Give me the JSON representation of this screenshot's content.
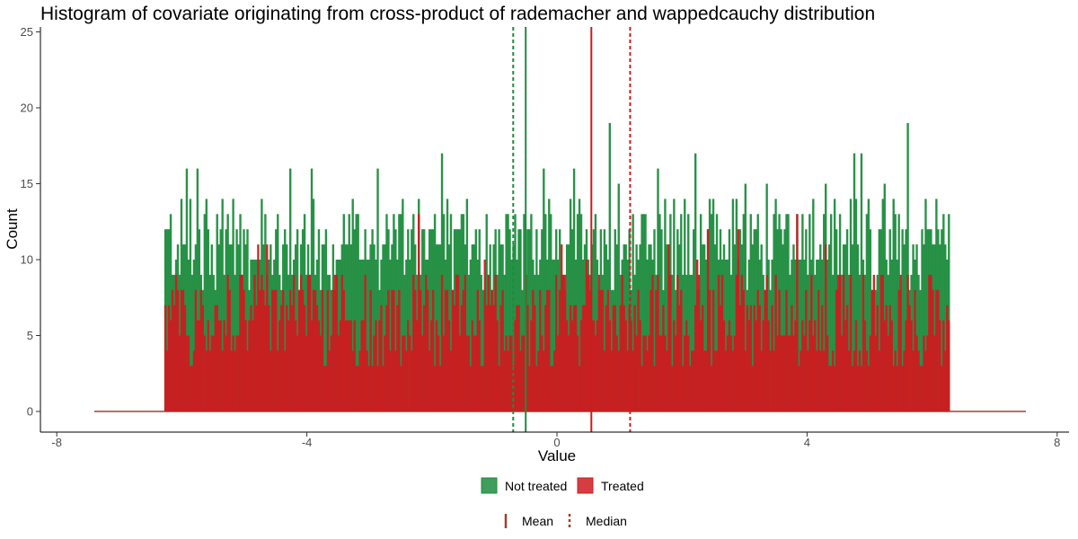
{
  "chart_data": {
    "type": "histogram",
    "title": "Histogram of covariate originating from cross-product of rademacher and wappedcauchy distribution",
    "xlabel": "Value",
    "ylabel": "Count",
    "xlim": [
      -8,
      8
    ],
    "ylim": [
      0,
      25
    ],
    "x_ticks": [
      "-8",
      "-4",
      "0",
      "4",
      "8"
    ],
    "y_ticks": [
      "0",
      "5",
      "10",
      "15",
      "20",
      "25"
    ],
    "data_range": [
      -6.28,
      6.28
    ],
    "zero_line_range": [
      -7.4,
      7.5
    ],
    "grid": false,
    "legend_position": "bottom",
    "series": [
      {
        "name": "Not treated",
        "color": "#1e8c3e",
        "typical_count": [
          8,
          14
        ],
        "max_count": 21
      },
      {
        "name": "Treated",
        "color": "#cc1c21",
        "typical_count": [
          3,
          9
        ],
        "max_count": 16
      }
    ],
    "reference_lines": [
      {
        "group": "Not treated",
        "stat": "Mean",
        "x": -0.5,
        "color": "#1e8c3e"
      },
      {
        "group": "Not treated",
        "stat": "Median",
        "x": -0.7,
        "color": "#1e8c3e"
      },
      {
        "group": "Treated",
        "stat": "Mean",
        "x": 0.55,
        "color": "#cc1c21"
      },
      {
        "group": "Treated",
        "stat": "Median",
        "x": 1.17,
        "color": "#cc1c21"
      }
    ],
    "line_legend": [
      {
        "label": "Mean",
        "style": "solid",
        "color": "#a0402a"
      },
      {
        "label": "Median",
        "style": "dashed",
        "color": "#a0402a"
      }
    ]
  }
}
